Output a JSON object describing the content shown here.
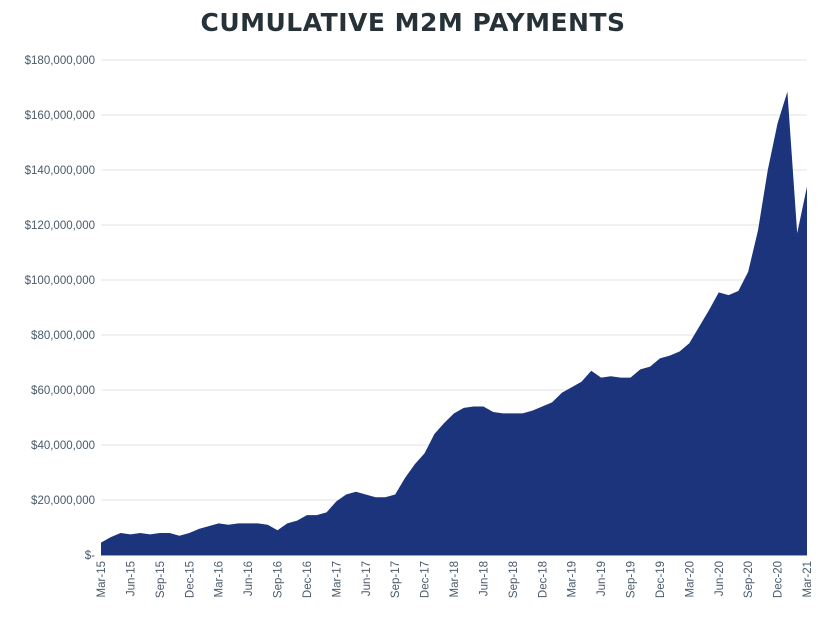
{
  "chart_data": {
    "type": "area",
    "title": "CUMULATIVE M2M PAYMENTS",
    "xlabel": "",
    "ylabel": "",
    "ylim": [
      0,
      180000000
    ],
    "grid": true,
    "legend": "none",
    "color": "#1b347c",
    "y_ticks": [
      "$-",
      "$20,000,000",
      "$40,000,000",
      "$60,000,000",
      "$80,000,000",
      "$100,000,000",
      "$120,000,000",
      "$140,000,000",
      "$160,000,000",
      "$180,000,000"
    ],
    "y_tick_values": [
      0,
      20000000,
      40000000,
      60000000,
      80000000,
      100000000,
      120000000,
      140000000,
      160000000,
      180000000
    ],
    "x_ticks": [
      "Mar-15",
      "Jun-15",
      "Sep-15",
      "Dec-15",
      "Mar-16",
      "Jun-16",
      "Sep-16",
      "Dec-16",
      "Mar-17",
      "Jun-17",
      "Sep-17",
      "Dec-17",
      "Mar-18",
      "Jun-18",
      "Sep-18",
      "Dec-18",
      "Mar-19",
      "Jun-19",
      "Sep-19",
      "Dec-19",
      "Mar-20",
      "Jun-20",
      "Sep-20",
      "Dec-20",
      "Mar-21"
    ],
    "x": [
      "Mar-15",
      "Apr-15",
      "May-15",
      "Jun-15",
      "Jul-15",
      "Aug-15",
      "Sep-15",
      "Oct-15",
      "Nov-15",
      "Dec-15",
      "Jan-16",
      "Feb-16",
      "Mar-16",
      "Apr-16",
      "May-16",
      "Jun-16",
      "Jul-16",
      "Aug-16",
      "Sep-16",
      "Oct-16",
      "Nov-16",
      "Dec-16",
      "Jan-17",
      "Feb-17",
      "Mar-17",
      "Apr-17",
      "May-17",
      "Jun-17",
      "Jul-17",
      "Aug-17",
      "Sep-17",
      "Oct-17",
      "Nov-17",
      "Dec-17",
      "Jan-18",
      "Feb-18",
      "Mar-18",
      "Apr-18",
      "May-18",
      "Jun-18",
      "Jul-18",
      "Aug-18",
      "Sep-18",
      "Oct-18",
      "Nov-18",
      "Dec-18",
      "Jan-19",
      "Feb-19",
      "Mar-19",
      "Apr-19",
      "May-19",
      "Jun-19",
      "Jul-19",
      "Aug-19",
      "Sep-19",
      "Oct-19",
      "Nov-19",
      "Dec-19",
      "Jan-20",
      "Feb-20",
      "Mar-20",
      "Apr-20",
      "May-20",
      "Jun-20",
      "Jul-20",
      "Aug-20",
      "Sep-20",
      "Oct-20",
      "Nov-20",
      "Dec-20",
      "Jan-21",
      "Feb-21",
      "Mar-21"
    ],
    "values": [
      4500000,
      6500000,
      8000000,
      7500000,
      8000000,
      7500000,
      8000000,
      8000000,
      7000000,
      8000000,
      9500000,
      10500000,
      11500000,
      11000000,
      11500000,
      11500000,
      11500000,
      11000000,
      9000000,
      11500000,
      12500000,
      14500000,
      14500000,
      15500000,
      19500000,
      22000000,
      23000000,
      22000000,
      21000000,
      21000000,
      22000000,
      28000000,
      33000000,
      37000000,
      44000000,
      48000000,
      51500000,
      53500000,
      54000000,
      54000000,
      52000000,
      51500000,
      51500000,
      51500000,
      52500000,
      54000000,
      55500000,
      59000000,
      61000000,
      63000000,
      67000000,
      64500000,
      65000000,
      64500000,
      64500000,
      67500000,
      68500000,
      71500000,
      72500000,
      74000000,
      77000000,
      83000000,
      89000000,
      95500000,
      94500000,
      96000000,
      103000000,
      118000000,
      140000000,
      157000000,
      168500000,
      117000000,
      134000000
    ]
  }
}
